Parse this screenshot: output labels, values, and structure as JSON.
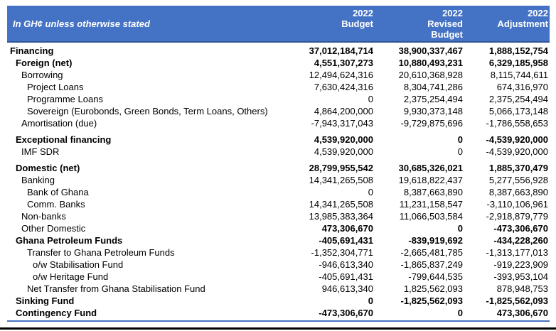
{
  "header": {
    "title": "In GH¢ unless otherwise stated",
    "columns": [
      {
        "lines": [
          "2022",
          "Budget"
        ]
      },
      {
        "lines": [
          "2022",
          "Revised",
          "Budget"
        ]
      },
      {
        "lines": [
          "2022",
          "Adjustment"
        ]
      }
    ]
  },
  "colors": {
    "header_bg": "#4472C4",
    "header_border_bottom": "#2F5597",
    "table_bottom_rule": "#4472C4",
    "page_bottom_bar": "#000000"
  },
  "rows": [
    {
      "label": "Financing",
      "indent": 0,
      "bold": true,
      "bold_values": true,
      "gap_before": false,
      "values": [
        "37,012,184,714",
        "38,900,337,467",
        "1,888,152,754"
      ]
    },
    {
      "label": "Foreign (net)",
      "indent": 1,
      "bold": true,
      "bold_values": true,
      "gap_before": false,
      "values": [
        "4,551,307,273",
        "10,880,493,231",
        "6,329,185,958"
      ]
    },
    {
      "label": "Borrowing",
      "indent": 2,
      "bold": false,
      "bold_values": false,
      "gap_before": false,
      "values": [
        "12,494,624,316",
        "20,610,368,928",
        "8,115,744,611"
      ]
    },
    {
      "label": "Project Loans",
      "indent": 3,
      "bold": false,
      "bold_values": false,
      "gap_before": false,
      "values": [
        "7,630,424,316",
        "8,304,741,286",
        "674,316,970"
      ]
    },
    {
      "label": "Programme Loans",
      "indent": 3,
      "bold": false,
      "bold_values": false,
      "gap_before": false,
      "values": [
        "0",
        "2,375,254,494",
        "2,375,254,494"
      ]
    },
    {
      "label": "Sovereign (Eurobonds, Green Bonds, Term Loans, Others)",
      "indent": 3,
      "bold": false,
      "bold_values": false,
      "gap_before": false,
      "values": [
        "4,864,200,000",
        "9,930,373,148",
        "5,066,173,148"
      ]
    },
    {
      "label": "Amortisation (due)",
      "indent": 2,
      "bold": false,
      "bold_values": false,
      "gap_before": false,
      "values": [
        "-7,943,317,043",
        "-9,729,875,696",
        "-1,786,558,653"
      ]
    },
    {
      "label": "Exceptional financing",
      "indent": 1,
      "bold": true,
      "bold_values": true,
      "gap_before": true,
      "values": [
        "4,539,920,000",
        "0",
        "-4,539,920,000"
      ]
    },
    {
      "label": "IMF SDR",
      "indent": 2,
      "bold": false,
      "bold_values": false,
      "gap_before": false,
      "values": [
        "4,539,920,000",
        "0",
        "-4,539,920,000"
      ]
    },
    {
      "label": "Domestic (net)",
      "indent": 1,
      "bold": true,
      "bold_values": true,
      "gap_before": true,
      "values": [
        "28,799,955,542",
        "30,685,326,021",
        "1,885,370,479"
      ]
    },
    {
      "label": "Banking",
      "indent": 2,
      "bold": false,
      "bold_values": false,
      "gap_before": false,
      "values": [
        "14,341,265,508",
        "19,618,822,437",
        "5,277,556,928"
      ]
    },
    {
      "label": "Bank of Ghana",
      "indent": 3,
      "bold": false,
      "bold_values": false,
      "gap_before": false,
      "values": [
        "0",
        "8,387,663,890",
        "8,387,663,890"
      ]
    },
    {
      "label": "Comm. Banks",
      "indent": 3,
      "bold": false,
      "bold_values": false,
      "gap_before": false,
      "values": [
        "14,341,265,508",
        "11,231,158,547",
        "-3,110,106,961"
      ]
    },
    {
      "label": "Non-banks",
      "indent": 2,
      "bold": false,
      "bold_values": false,
      "gap_before": false,
      "values": [
        "13,985,383,364",
        "11,066,503,584",
        "-2,918,879,779"
      ]
    },
    {
      "label": "Other Domestic",
      "indent": 2,
      "bold": false,
      "bold_values": true,
      "gap_before": false,
      "values": [
        "473,306,670",
        "0",
        "-473,306,670"
      ]
    },
    {
      "label": "Ghana Petroleum Funds",
      "indent": 1,
      "bold": true,
      "bold_values": true,
      "gap_before": false,
      "values": [
        "-405,691,431",
        "-839,919,692",
        "-434,228,260"
      ]
    },
    {
      "label": "Transfer to Ghana Petroleum Funds",
      "indent": 3,
      "bold": false,
      "bold_values": false,
      "gap_before": false,
      "values": [
        "-1,352,304,771",
        "-2,665,481,785",
        "-1,313,177,013"
      ]
    },
    {
      "label": "o/w Stabilisation Fund",
      "indent": 4,
      "bold": false,
      "bold_values": false,
      "gap_before": false,
      "values": [
        "-946,613,340",
        "-1,865,837,249",
        "-919,223,909"
      ]
    },
    {
      "label": "o/w Heritage Fund",
      "indent": 4,
      "bold": false,
      "bold_values": false,
      "gap_before": false,
      "values": [
        "-405,691,431",
        "-799,644,535",
        "-393,953,104"
      ]
    },
    {
      "label": "Net Transfer from Ghana Stabilisation Fund",
      "indent": 3,
      "bold": false,
      "bold_values": false,
      "gap_before": false,
      "values": [
        "946,613,340",
        "1,825,562,093",
        "878,948,753"
      ]
    },
    {
      "label": "Sinking Fund",
      "indent": 1,
      "bold": true,
      "bold_values": true,
      "gap_before": false,
      "values": [
        "0",
        "-1,825,562,093",
        "-1,825,562,093"
      ]
    },
    {
      "label": "Contingency Fund",
      "indent": 1,
      "bold": true,
      "bold_values": true,
      "gap_before": false,
      "values": [
        "-473,306,670",
        "0",
        "473,306,670"
      ]
    }
  ]
}
